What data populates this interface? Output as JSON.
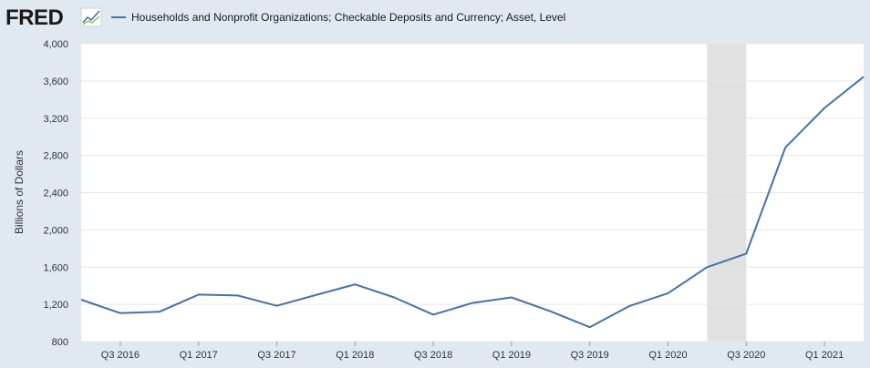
{
  "brand": {
    "logo_text": "FRED"
  },
  "colors": {
    "background": "#e1e9f0",
    "plot_background": "#ffffff",
    "series_line": "#4572a7",
    "recession_band": "#e1e1e1",
    "grid": "#e6e6e6"
  },
  "chart_data": {
    "type": "line",
    "title": "",
    "xlabel": "",
    "ylabel": "Billions of Dollars",
    "ylim": [
      800,
      4000
    ],
    "yticks": [
      800,
      1200,
      1600,
      2000,
      2400,
      2800,
      3200,
      3600,
      4000
    ],
    "ytick_labels": [
      "800",
      "1,200",
      "1,600",
      "2,000",
      "2,400",
      "2,800",
      "3,200",
      "3,600",
      "4,000"
    ],
    "x_range": [
      "2016 Q2",
      "2021 Q2"
    ],
    "xtick_labels": [
      "Q3 2016",
      "Q1 2017",
      "Q3 2017",
      "Q1 2018",
      "Q3 2018",
      "Q1 2019",
      "Q3 2019",
      "Q1 2020",
      "Q3 2020",
      "Q1 2021"
    ],
    "grid": true,
    "legend_position": "top-left",
    "recession": {
      "start": "2020 Q2",
      "end": "2020 Q3"
    },
    "series": [
      {
        "name": "Households and Nonprofit Organizations; Checkable Deposits and Currency; Asset, Level",
        "x": [
          "2016 Q2",
          "2016 Q3",
          "2016 Q4",
          "2017 Q1",
          "2017 Q2",
          "2017 Q3",
          "2017 Q4",
          "2018 Q1",
          "2018 Q2",
          "2018 Q3",
          "2018 Q4",
          "2019 Q1",
          "2019 Q2",
          "2019 Q3",
          "2019 Q4",
          "2020 Q1",
          "2020 Q2",
          "2020 Q3",
          "2020 Q4",
          "2021 Q1",
          "2021 Q2"
        ],
        "values": [
          1250,
          1105,
          1120,
          1305,
          1295,
          1185,
          1300,
          1415,
          1275,
          1090,
          1215,
          1275,
          1125,
          955,
          1180,
          1320,
          1600,
          1745,
          2885,
          3310,
          3645
        ]
      }
    ]
  }
}
